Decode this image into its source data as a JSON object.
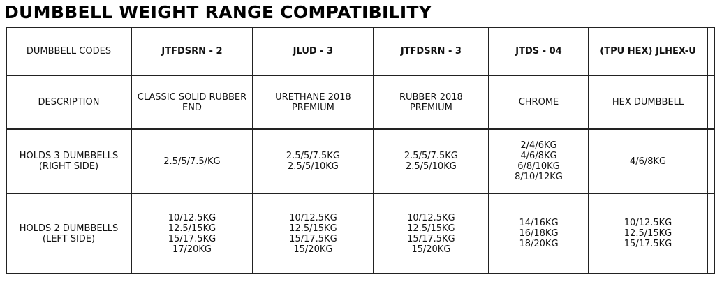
{
  "title": "DUMBBELL WEIGHT RANGE COMPATIBILITY",
  "row_labels": [
    "DUMBBELL CODES",
    "DESCRIPTION",
    "HOLDS 3 DUMBBELLS\n(RIGHT SIDE)",
    "HOLDS 2 DUMBBELLS\n(LEFT SIDE)"
  ],
  "columns": [
    {
      "code": "JTFDSRN - 2",
      "description": "CLASSIC SOLID RUBBER\nEND",
      "holds3": "2.5/5/7.5/KG",
      "holds2": "10/12.5KG\n12.5/15KG\n15/17.5KG\n17/20KG"
    },
    {
      "code": "JLUD - 3",
      "description": "URETHANE 2018\nPREMIUM",
      "holds3": "2.5/5/7.5KG\n2.5/5/10KG",
      "holds2": "10/12.5KG\n12.5/15KG\n15/17.5KG\n15/20KG"
    },
    {
      "code": "JTFDSRN - 3",
      "description": "RUBBER 2018\nPREMIUM",
      "holds3": "2.5/5/7.5KG\n2.5/5/10KG",
      "holds2": "10/12.5KG\n12.5/15KG\n15/17.5KG\n15/20KG"
    },
    {
      "code": "JTDS - 04",
      "description": "CHROME",
      "holds3": "2/4/6KG\n4/6/8KG\n6/8/10KG\n8/10/12KG",
      "holds2": "14/16KG\n16/18KG\n18/20KG"
    },
    {
      "code": "(TPU HEX) JLHEX-U",
      "description": "HEX DUMBBELL",
      "holds3": "4/6/8KG",
      "holds2": "10/12.5KG\n12.5/15KG\n15/17.5KG"
    }
  ]
}
